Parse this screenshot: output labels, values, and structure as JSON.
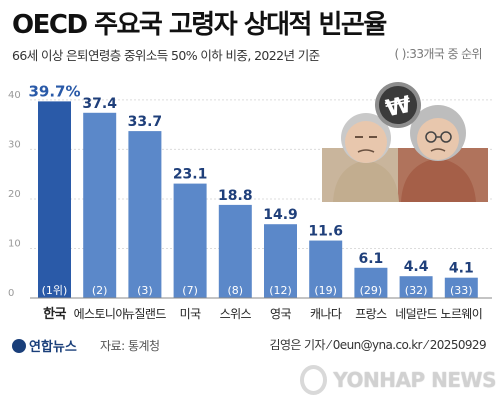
{
  "header": {
    "title": "OECD 주요국 고령자 상대적 빈곤율",
    "subtitle": "66세 이상 은퇴연령층 중위소득 50% 이하 비중, 2022년 기준",
    "note": "( ):33개국 중 순위"
  },
  "footer": {
    "logo": "연합뉴스",
    "source": "자료: 통계청",
    "credit": "김영은 기자 ⁄ 0eun@yna.co.kr ⁄ 20250929",
    "watermark": "YONHAP NEWS"
  },
  "colors": {
    "highlight": "#2a5aa8",
    "bar": "#5b88c9",
    "highlight_label": "#2a5aa8",
    "value_label": "#1f3f7a"
  },
  "illustration": {
    "icon": "elderly-couple-with-won-coin"
  },
  "chart_data": {
    "type": "bar",
    "title": "OECD 주요국 고령자 상대적 빈곤율",
    "xlabel": "",
    "ylabel": "",
    "ylim": [
      0,
      42
    ],
    "yticks": [
      0,
      10,
      20,
      30,
      40
    ],
    "grid": true,
    "categories": [
      "한국",
      "에스토니아",
      "뉴질랜드",
      "미국",
      "스위스",
      "영국",
      "캐나다",
      "프랑스",
      "네덜란드",
      "노르웨이"
    ],
    "values": [
      39.7,
      37.4,
      33.7,
      23.1,
      18.8,
      14.9,
      11.6,
      6.1,
      4.4,
      4.1
    ],
    "value_labels": [
      "39.7%",
      "37.4",
      "33.7",
      "23.1",
      "18.8",
      "14.9",
      "11.6",
      "6.1",
      "4.4",
      "4.1"
    ],
    "rank_labels": [
      "(1위)",
      "(2)",
      "(3)",
      "(7)",
      "(8)",
      "(12)",
      "(19)",
      "(29)",
      "(32)",
      "(33)"
    ],
    "highlight_index": 0
  }
}
